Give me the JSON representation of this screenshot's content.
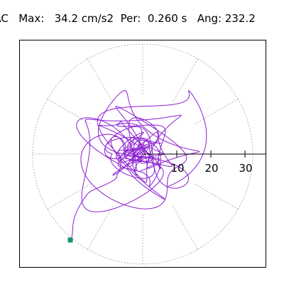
{
  "header": {
    "title": "IAC",
    "max_label": "Max:",
    "max_value": "34.2 cm/s2",
    "per_label": "Per:",
    "per_value": "0.260 s",
    "ang_label": "Ang:",
    "ang_value": "232.2"
  },
  "plot": {
    "type": "polar-orbit",
    "trace_color": "#8A1FD0",
    "marker_color": "#1A8F7A",
    "grid": "dotted",
    "radial_ticks": [
      "10",
      "20",
      "30"
    ],
    "axis_color": "#000000",
    "grid_color": "#888888"
  }
}
